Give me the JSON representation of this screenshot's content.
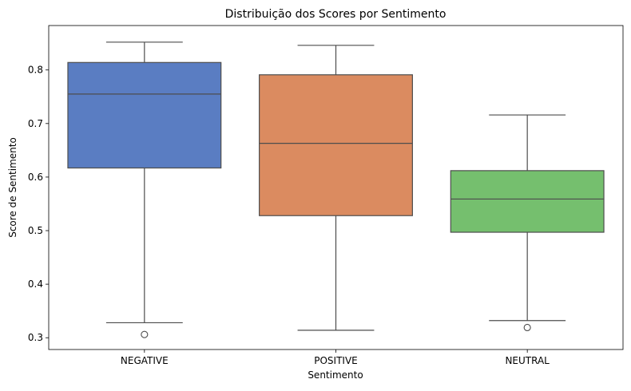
{
  "chart_data": {
    "type": "box",
    "title": "Distribuição dos Scores por Sentimento",
    "xlabel": "Sentimento",
    "ylabel": "Score de Sentimento",
    "ylim": [
      0.278,
      0.883
    ],
    "yticks": [
      "0.3",
      "0.4",
      "0.5",
      "0.6",
      "0.7",
      "0.8"
    ],
    "grid": false,
    "categories": [
      "NEGATIVE",
      "POSITIVE",
      "NEUTRAL"
    ],
    "boxes": [
      {
        "category": "NEGATIVE",
        "color": "#5a7dc2",
        "whisker_low": 0.328,
        "q1": 0.617,
        "median": 0.755,
        "q3": 0.814,
        "whisker_high": 0.852,
        "outliers": [
          0.306
        ]
      },
      {
        "category": "POSITIVE",
        "color": "#db8b60",
        "whisker_low": 0.314,
        "q1": 0.528,
        "median": 0.663,
        "q3": 0.791,
        "whisker_high": 0.846,
        "outliers": []
      },
      {
        "category": "NEUTRAL",
        "color": "#75bf6e",
        "whisker_low": 0.332,
        "q1": 0.497,
        "median": 0.559,
        "q3": 0.612,
        "whisker_high": 0.716,
        "outliers": [
          0.319
        ]
      }
    ]
  }
}
